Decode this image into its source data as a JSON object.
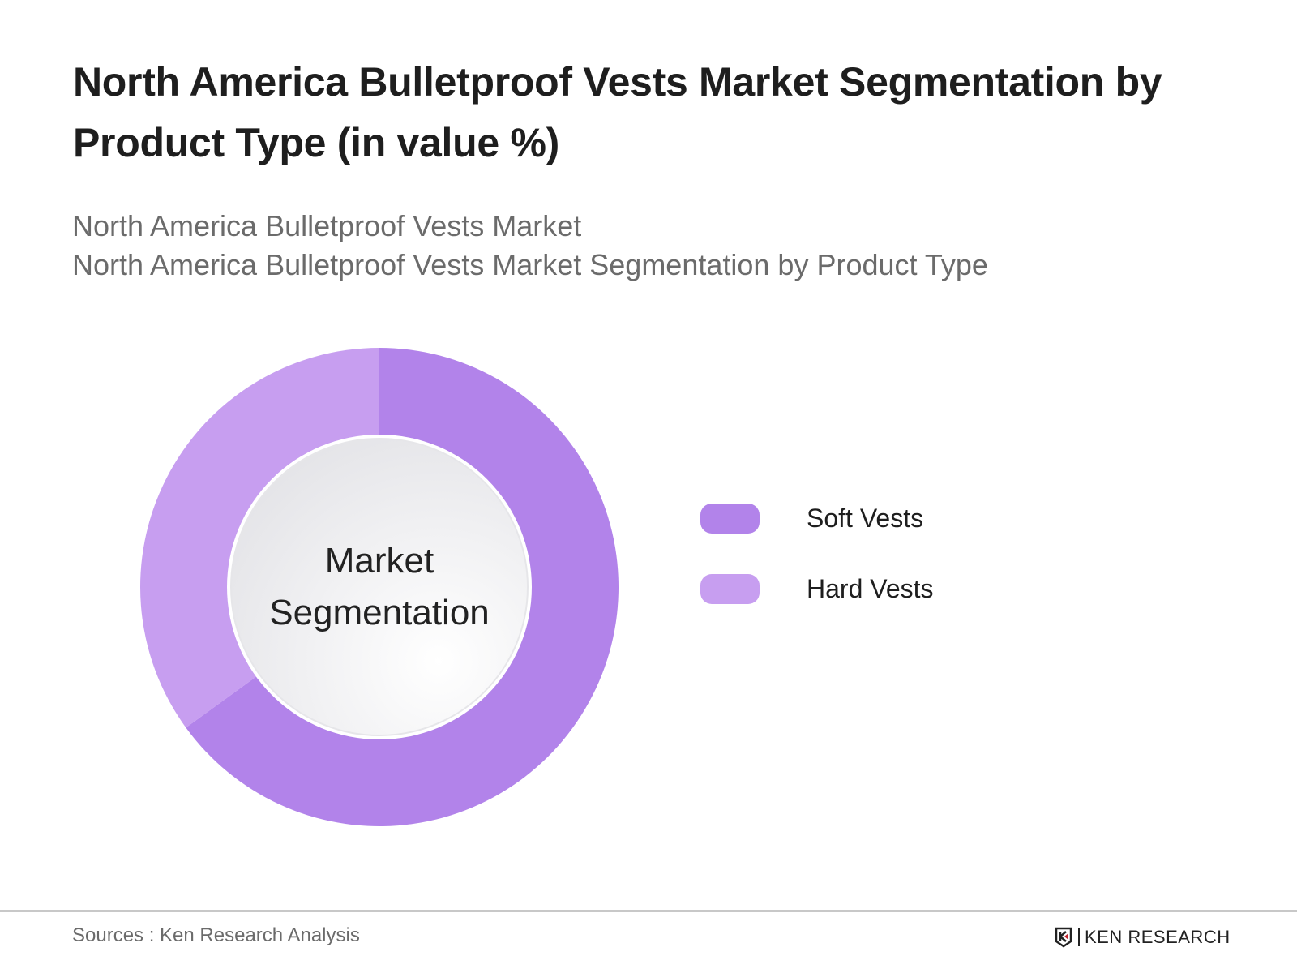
{
  "header": {
    "title": "North America Bulletproof Vests Market Segmentation by Product Type (in value %)",
    "subtitle_1": "North America Bulletproof Vests Market",
    "subtitle_2": "North America Bulletproof Vests Market Segmentation by Product Type"
  },
  "chart_data": {
    "type": "pie",
    "variant": "donut",
    "title": "North America Bulletproof Vests Market Segmentation by Product Type (in value %)",
    "center_label": [
      "Market",
      "Segmentation"
    ],
    "categories": [
      "Soft Vests",
      "Hard Vests"
    ],
    "values": [
      65,
      35
    ],
    "colors": [
      "#b283ea",
      "#c79ef0"
    ],
    "legend_position": "right"
  },
  "footer": {
    "source": "Sources : Ken Research Analysis",
    "logo": "KEN RESEARCH"
  }
}
